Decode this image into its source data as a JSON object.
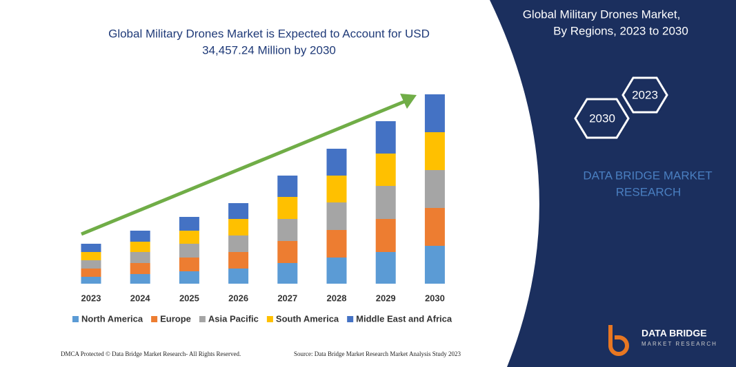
{
  "chart_data": {
    "type": "stacked-bar",
    "title": [
      "Global Military Drones Market is Expected to Account for USD",
      "34,457.24 Million by 2030"
    ],
    "categories": [
      "2023",
      "2024",
      "2025",
      "2026",
      "2027",
      "2028",
      "2029",
      "2030"
    ],
    "series": [
      {
        "name": "North America",
        "color": "#5b9bd5",
        "values": [
          10,
          14,
          18,
          22,
          30,
          38,
          46,
          55
        ]
      },
      {
        "name": "Europe",
        "color": "#ed7d31",
        "values": [
          12,
          16,
          20,
          24,
          32,
          40,
          48,
          55
        ]
      },
      {
        "name": "Asia Pacific",
        "color": "#a5a5a5",
        "values": [
          12,
          16,
          20,
          24,
          32,
          40,
          48,
          55
        ]
      },
      {
        "name": "South America",
        "color": "#ffc000",
        "values": [
          12,
          15,
          19,
          24,
          32,
          39,
          47,
          55
        ]
      },
      {
        "name": "Middle East and Africa",
        "color": "#4472c4",
        "values": [
          12,
          16,
          20,
          23,
          31,
          39,
          47,
          55
        ]
      }
    ]
  },
  "panel": {
    "title": [
      "Global Military Drones Market,",
      "By Regions, 2023 to 2030"
    ],
    "hexagons": [
      "2023",
      "2030"
    ],
    "brand": [
      "DATA BRIDGE MARKET",
      "RESEARCH"
    ]
  },
  "logo": {
    "name": "DATA BRIDGE",
    "tagline": "MARKET RESEARCH"
  },
  "footer": {
    "left": "DMCA Protected © Data Bridge Market Research- All Rights Reserved.",
    "right": "Source: Data Bridge Market Research Market Analysis Study 2023"
  }
}
